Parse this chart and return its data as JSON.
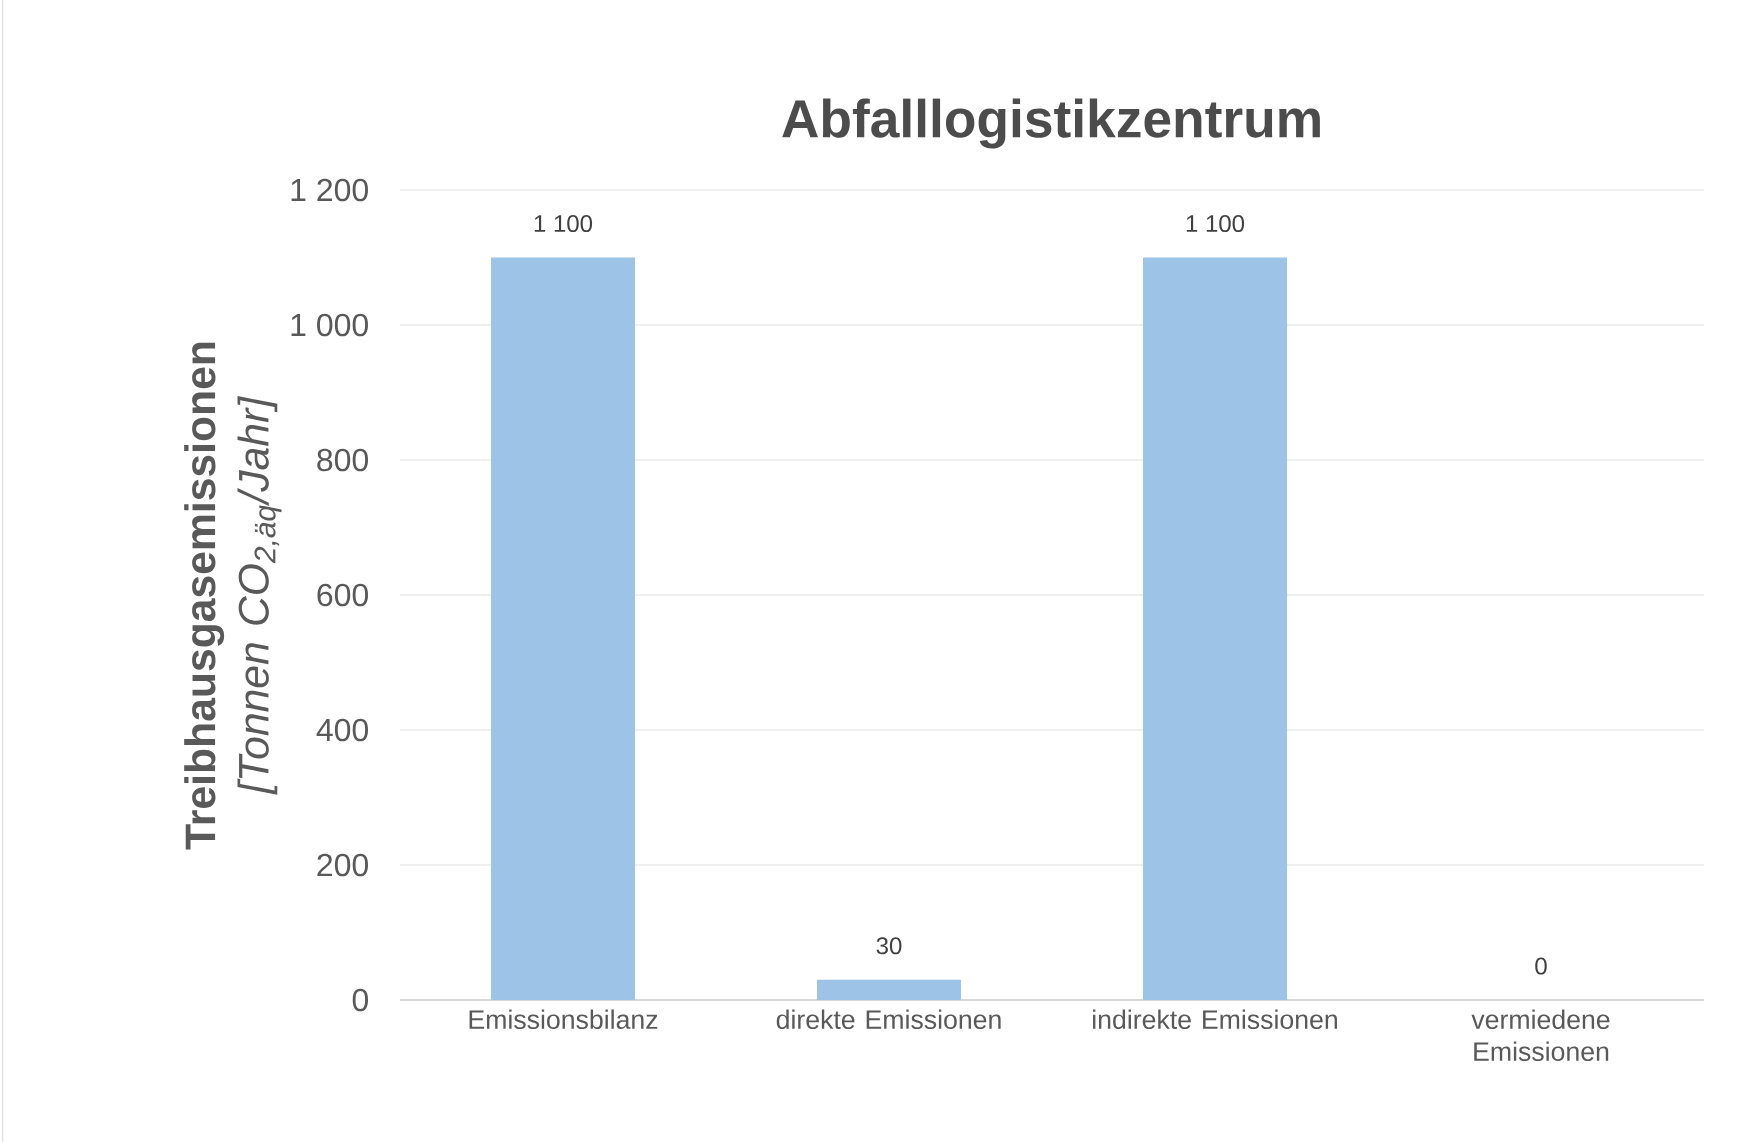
{
  "chart_data": {
    "type": "bar",
    "title": "Abfalllogistikzentrum",
    "ylabel": "**Treibhausgasemissionen** *[Tonnen CO$_{2,äq}$/Jahr]*",
    "categories": [
      "Emissionsbilanz",
      "direkte Emissionen",
      "indirekte Emissionen",
      "vermiedene Emissionen"
    ],
    "values": [
      1100,
      30,
      1100,
      0
    ],
    "value_labels": [
      "1 100",
      "30",
      "1 100",
      "0"
    ],
    "color": "#9dc3e6",
    "ylim": [
      0,
      1200
    ],
    "yticks": [
      0,
      200,
      400,
      600,
      800,
      {
        "value": 1000,
        "label": "1 000"
      },
      {
        "value": 1200,
        "label": "1 200"
      }
    ],
    "grid": "y"
  }
}
